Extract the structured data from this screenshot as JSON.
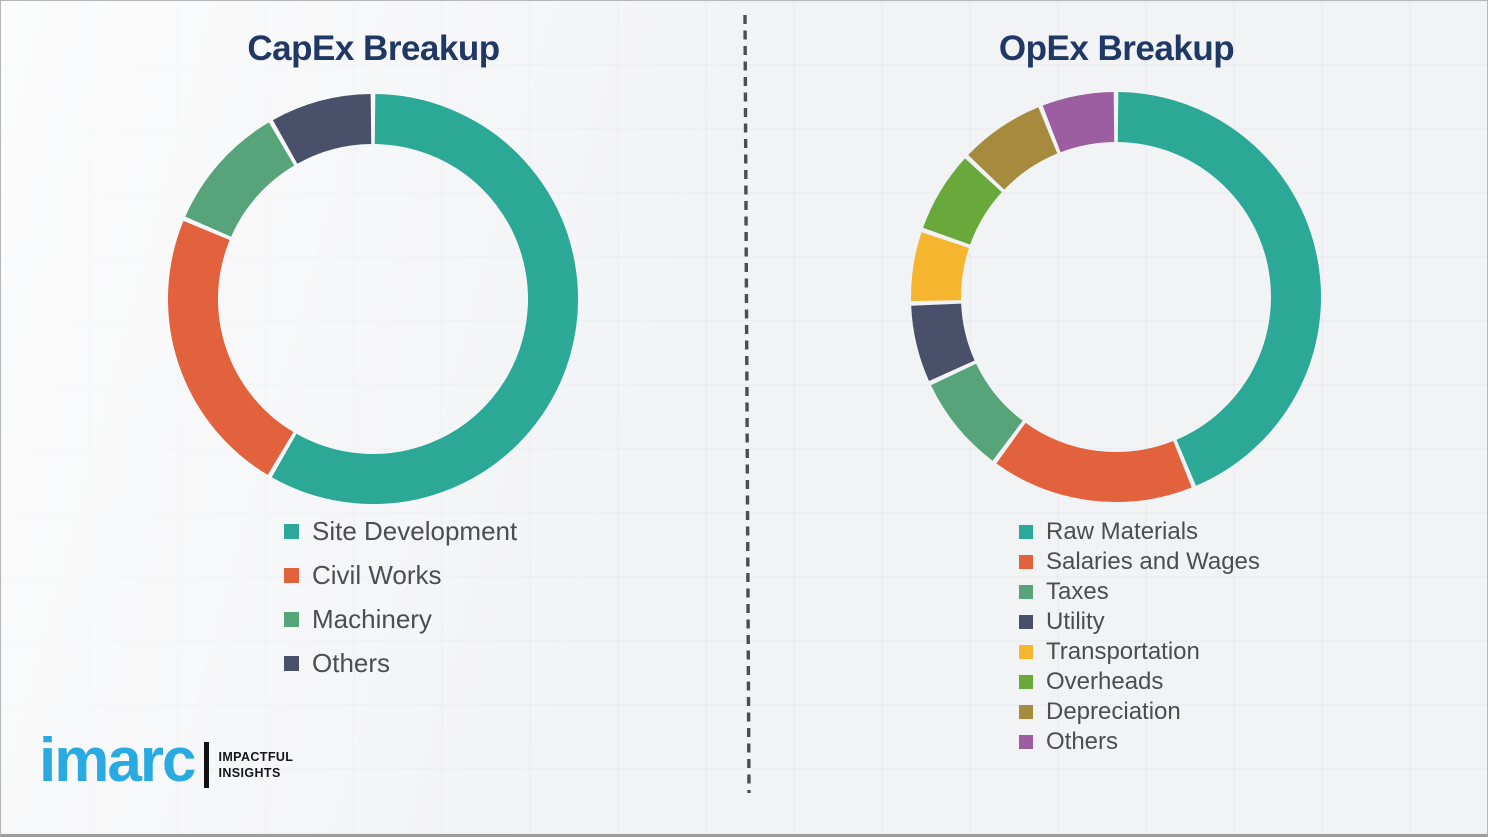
{
  "chart_data": [
    {
      "type": "pie",
      "subtype": "donut",
      "title": "CapEx Breakup",
      "categories": [
        "Site Development",
        "Civil Works",
        "Machinery",
        "Others"
      ],
      "values": [
        58.4,
        23.0,
        10.3,
        8.3
      ],
      "unit": "percent_of_total_estimated_from_arc_angles",
      "colors": [
        "#2BA896",
        "#E2623D",
        "#57A47B",
        "#4A5069"
      ],
      "start_angle_deg": 0,
      "direction": "clockwise",
      "donut_hole_ratio": 0.76,
      "legend_position": "below-chart-left",
      "data_labels_shown": false
    },
    {
      "type": "pie",
      "subtype": "donut",
      "title": "OpEx Breakup",
      "categories": [
        "Raw Materials",
        "Salaries and Wages",
        "Taxes",
        "Utility",
        "Transportation",
        "Overheads",
        "Depreciation",
        "Others"
      ],
      "values": [
        43.8,
        16.3,
        8.0,
        6.4,
        5.8,
        6.7,
        7.0,
        6.0
      ],
      "unit": "percent_of_total_estimated_from_arc_angles",
      "colors": [
        "#2BA896",
        "#E2623D",
        "#57A47B",
        "#4A5069",
        "#F5B52E",
        "#69A93C",
        "#A68A3E",
        "#9C5DA1"
      ],
      "start_angle_deg": 0,
      "direction": "clockwise",
      "donut_hole_ratio": 0.76,
      "legend_position": "below-chart-left",
      "data_labels_shown": false
    }
  ],
  "style": {
    "title_color": "#1f3864",
    "legend_text_color": "#4d4d4d",
    "divider_color": "#4d4d4d",
    "background_color": "#f2f3f5"
  },
  "logo": {
    "brand": "imarc",
    "tagline_line1": "IMPACTFUL",
    "tagline_line2": "INSIGHTS",
    "brand_color": "#29ABE2"
  }
}
